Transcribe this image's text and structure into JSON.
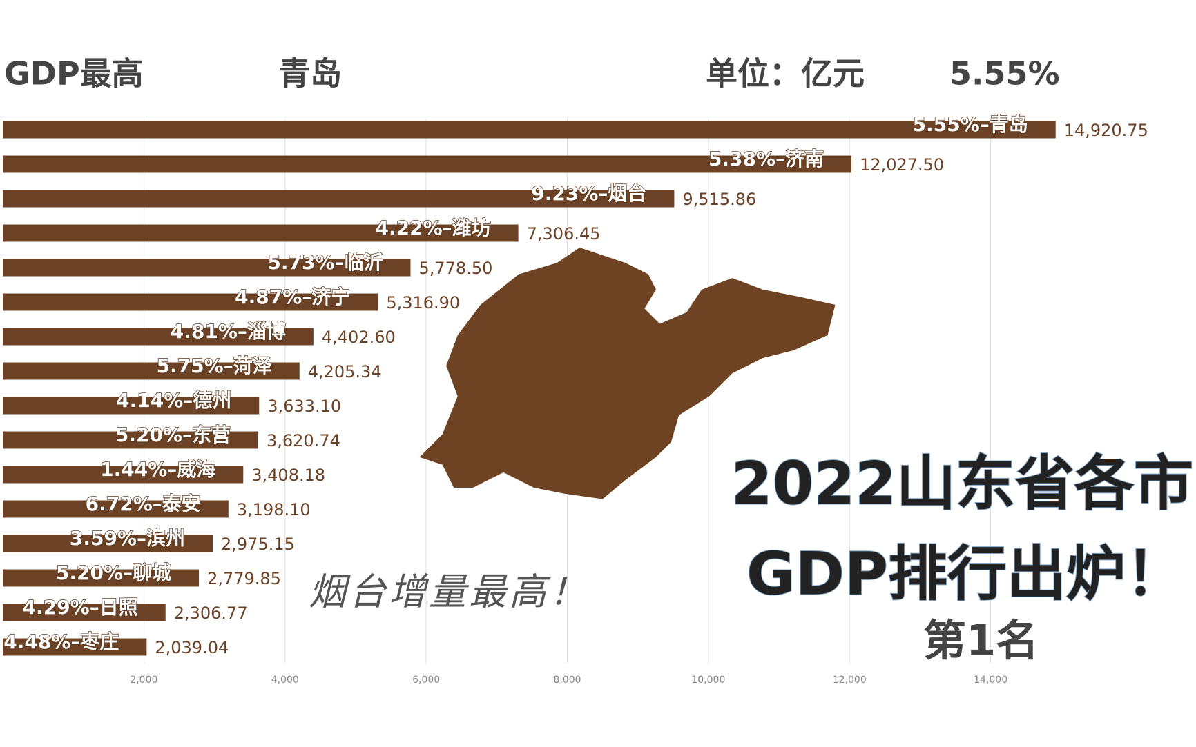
{
  "chart_data": {
    "type": "bar",
    "orientation": "horizontal",
    "header_label": "GDP最高",
    "header_leader": "青岛",
    "unit": "单位：亿元",
    "header_rate": "5.55%",
    "title": "2022山东省各市",
    "subtitle": "GDP排行出炉！",
    "rank_label": "第1名",
    "annotation": "烟台增量最高！",
    "color": "#6b4226",
    "categories": [
      "5.55%–青岛",
      "5.38%–济南",
      "9.23%–烟台",
      "4.22%–潍坊",
      "5.73%–临沂",
      "4.87%–济宁",
      "4.81%–淄博",
      "5.75%–菏泽",
      "4.14%–德州",
      "5.20%–东营",
      "1.44%–威海",
      "6.72%–泰安",
      "3.59%–滨州",
      "5.20%–聊城",
      "4.29%–日照",
      "4.48%–枣庄"
    ],
    "values": [
      14920.75,
      12027.5,
      9515.86,
      7306.45,
      5778.5,
      5316.9,
      4402.6,
      4205.34,
      3633.1,
      3620.74,
      3408.18,
      3198.1,
      2975.15,
      2779.85,
      2306.77,
      2039.04
    ],
    "value_labels": [
      "14,920.75",
      "12,027.50",
      "9,515.86",
      "7,306.45",
      "5,778.50",
      "5,316.90",
      "4,402.60",
      "4,205.34",
      "3,633.10",
      "3,620.74",
      "3,408.18",
      "3,198.10",
      "2,975.15",
      "2,779.85",
      "2,306.77",
      "2,039.04"
    ],
    "xlim": [
      0,
      16000
    ],
    "xticks": [
      {
        "value": 2000,
        "label": "2,000"
      },
      {
        "value": 4000,
        "label": "4,000"
      },
      {
        "value": 6000,
        "label": "6,000"
      },
      {
        "value": 8000,
        "label": "8,000"
      },
      {
        "value": 10000,
        "label": "10,000"
      },
      {
        "value": 12000,
        "label": "12,000"
      },
      {
        "value": 14000,
        "label": "14,000"
      }
    ],
    "grid": true
  }
}
